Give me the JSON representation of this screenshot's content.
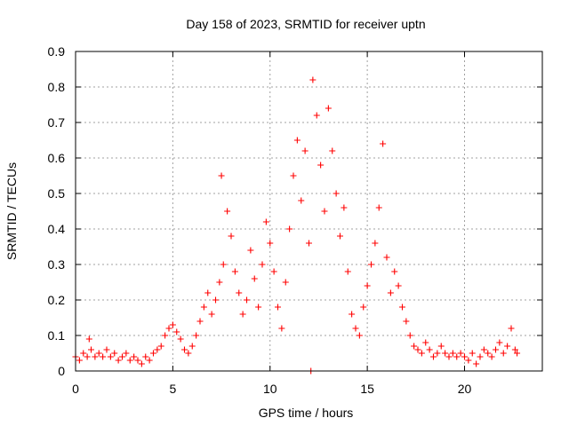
{
  "chart_data": {
    "type": "scatter",
    "title": "Day 158 of 2023, SRMTID for receiver uptn",
    "xlabel": "GPS time / hours",
    "ylabel": "SRMTID / TECUs",
    "xlim": [
      0,
      24
    ],
    "ylim": [
      0,
      0.9
    ],
    "xticks": [
      "0",
      "5",
      "10",
      "15",
      "20"
    ],
    "yticks": [
      "0",
      "0.1",
      "0.2",
      "0.3",
      "0.4",
      "0.5",
      "0.6",
      "0.7",
      "0.8",
      "0.9"
    ],
    "grid": true,
    "marker": "plus",
    "color": "#ff0000",
    "series": [
      {
        "name": "SRMTID",
        "points": [
          [
            0.0,
            0.04
          ],
          [
            0.2,
            0.03
          ],
          [
            0.4,
            0.05
          ],
          [
            0.6,
            0.04
          ],
          [
            0.7,
            0.09
          ],
          [
            0.8,
            0.06
          ],
          [
            1.0,
            0.04
          ],
          [
            1.2,
            0.05
          ],
          [
            1.4,
            0.04
          ],
          [
            1.6,
            0.06
          ],
          [
            1.8,
            0.04
          ],
          [
            2.0,
            0.05
          ],
          [
            2.2,
            0.03
          ],
          [
            2.4,
            0.04
          ],
          [
            2.6,
            0.05
          ],
          [
            2.8,
            0.03
          ],
          [
            3.0,
            0.04
          ],
          [
            3.2,
            0.03
          ],
          [
            3.4,
            0.02
          ],
          [
            3.6,
            0.04
          ],
          [
            3.8,
            0.03
          ],
          [
            4.0,
            0.05
          ],
          [
            4.2,
            0.06
          ],
          [
            4.4,
            0.07
          ],
          [
            4.6,
            0.1
          ],
          [
            4.8,
            0.12
          ],
          [
            5.0,
            0.13
          ],
          [
            5.2,
            0.11
          ],
          [
            5.4,
            0.09
          ],
          [
            5.6,
            0.06
          ],
          [
            5.8,
            0.05
          ],
          [
            6.0,
            0.07
          ],
          [
            6.2,
            0.1
          ],
          [
            6.4,
            0.14
          ],
          [
            6.6,
            0.18
          ],
          [
            6.8,
            0.22
          ],
          [
            7.0,
            0.16
          ],
          [
            7.2,
            0.2
          ],
          [
            7.4,
            0.25
          ],
          [
            7.5,
            0.55
          ],
          [
            7.6,
            0.3
          ],
          [
            7.8,
            0.45
          ],
          [
            8.0,
            0.38
          ],
          [
            8.2,
            0.28
          ],
          [
            8.4,
            0.22
          ],
          [
            8.6,
            0.16
          ],
          [
            8.8,
            0.2
          ],
          [
            9.0,
            0.34
          ],
          [
            9.2,
            0.26
          ],
          [
            9.4,
            0.18
          ],
          [
            9.6,
            0.3
          ],
          [
            9.8,
            0.42
          ],
          [
            10.0,
            0.36
          ],
          [
            10.2,
            0.28
          ],
          [
            10.4,
            0.18
          ],
          [
            10.6,
            0.12
          ],
          [
            10.8,
            0.25
          ],
          [
            11.0,
            0.4
          ],
          [
            11.2,
            0.55
          ],
          [
            11.4,
            0.65
          ],
          [
            11.6,
            0.48
          ],
          [
            11.8,
            0.62
          ],
          [
            12.0,
            0.36
          ],
          [
            12.1,
            0.0
          ],
          [
            12.2,
            0.82
          ],
          [
            12.4,
            0.72
          ],
          [
            12.6,
            0.58
          ],
          [
            12.8,
            0.45
          ],
          [
            13.0,
            0.74
          ],
          [
            13.2,
            0.62
          ],
          [
            13.4,
            0.5
          ],
          [
            13.6,
            0.38
          ],
          [
            13.8,
            0.46
          ],
          [
            14.0,
            0.28
          ],
          [
            14.2,
            0.16
          ],
          [
            14.4,
            0.12
          ],
          [
            14.6,
            0.1
          ],
          [
            14.8,
            0.18
          ],
          [
            15.0,
            0.24
          ],
          [
            15.2,
            0.3
          ],
          [
            15.4,
            0.36
          ],
          [
            15.6,
            0.46
          ],
          [
            15.8,
            0.64
          ],
          [
            16.0,
            0.32
          ],
          [
            16.2,
            0.22
          ],
          [
            16.4,
            0.28
          ],
          [
            16.6,
            0.24
          ],
          [
            16.8,
            0.18
          ],
          [
            17.0,
            0.14
          ],
          [
            17.2,
            0.1
          ],
          [
            17.4,
            0.07
          ],
          [
            17.6,
            0.06
          ],
          [
            17.8,
            0.05
          ],
          [
            18.0,
            0.08
          ],
          [
            18.2,
            0.06
          ],
          [
            18.4,
            0.04
          ],
          [
            18.6,
            0.05
          ],
          [
            18.8,
            0.07
          ],
          [
            19.0,
            0.05
          ],
          [
            19.2,
            0.04
          ],
          [
            19.4,
            0.05
          ],
          [
            19.6,
            0.04
          ],
          [
            19.8,
            0.05
          ],
          [
            20.0,
            0.04
          ],
          [
            20.2,
            0.03
          ],
          [
            20.4,
            0.05
          ],
          [
            20.6,
            0.02
          ],
          [
            20.8,
            0.04
          ],
          [
            21.0,
            0.06
          ],
          [
            21.2,
            0.05
          ],
          [
            21.4,
            0.04
          ],
          [
            21.6,
            0.06
          ],
          [
            21.8,
            0.08
          ],
          [
            22.0,
            0.05
          ],
          [
            22.2,
            0.07
          ],
          [
            22.4,
            0.12
          ],
          [
            22.6,
            0.06
          ],
          [
            22.7,
            0.05
          ]
        ]
      }
    ]
  }
}
